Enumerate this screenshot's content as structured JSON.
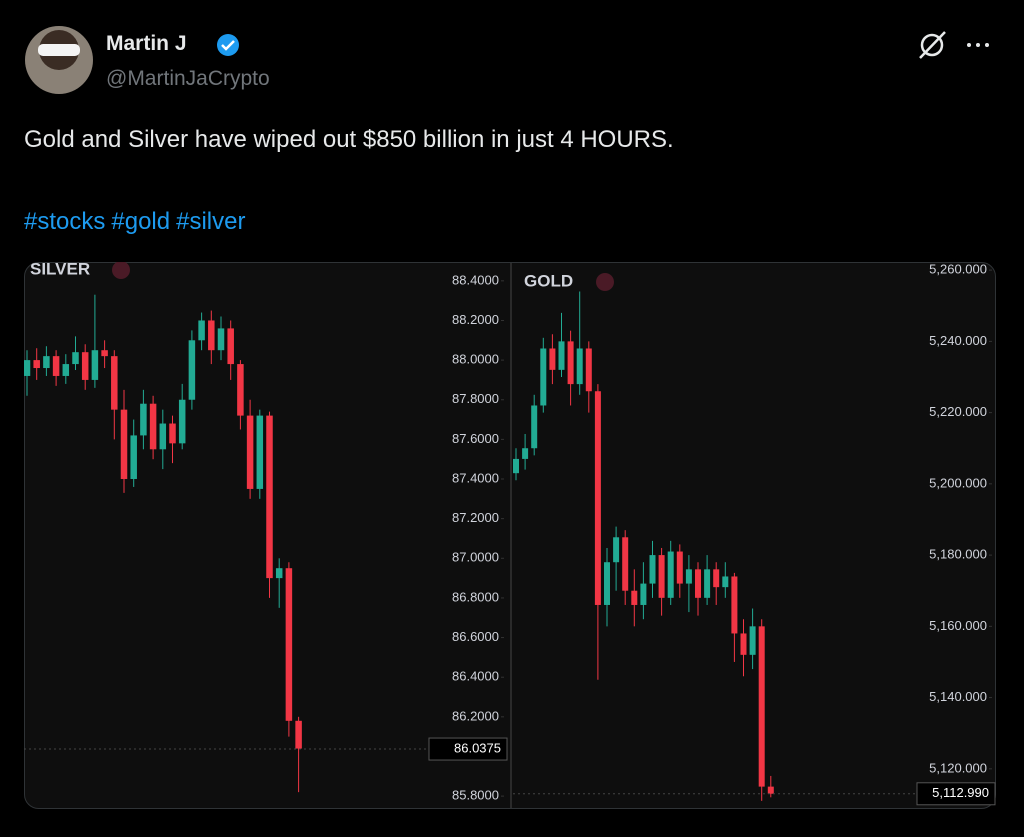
{
  "tweet": {
    "name": "Martin J",
    "handle": "@MartinJaCrypto",
    "text": "Gold and Silver have wiped out $850 billion in just 4 HOURS.",
    "hashtags": [
      "#stocks",
      "#gold",
      "#silver"
    ]
  },
  "chart_data": [
    {
      "type": "candlestick",
      "title": "SILVER",
      "up_color": "#22ab94",
      "down_color": "#f23645",
      "open": [
        87.92,
        88.0,
        87.96,
        88.02,
        87.92,
        87.98,
        88.04,
        87.9,
        88.05,
        88.02,
        87.75,
        87.4,
        87.62,
        87.78,
        87.55,
        87.68,
        87.58,
        87.8,
        88.1,
        88.2,
        88.05,
        88.16,
        87.98,
        87.72,
        87.35,
        87.72,
        86.9,
        86.95,
        86.18
      ],
      "high": [
        88.05,
        88.06,
        88.07,
        88.05,
        88.03,
        88.12,
        88.08,
        88.33,
        88.1,
        88.05,
        87.85,
        87.7,
        87.85,
        87.82,
        87.75,
        87.72,
        87.88,
        88.15,
        88.24,
        88.25,
        88.22,
        88.2,
        88.0,
        87.8,
        87.75,
        87.74,
        87.0,
        86.98,
        86.2
      ],
      "low": [
        87.82,
        87.9,
        87.92,
        87.87,
        87.88,
        87.95,
        87.85,
        87.86,
        87.96,
        87.6,
        87.33,
        87.36,
        87.55,
        87.5,
        87.45,
        87.48,
        87.55,
        87.75,
        88.05,
        87.98,
        88.0,
        87.9,
        87.65,
        87.3,
        87.3,
        86.8,
        86.75,
        86.1,
        85.82
      ],
      "close": [
        88.0,
        87.96,
        88.02,
        87.92,
        87.98,
        88.04,
        87.9,
        88.05,
        88.02,
        87.75,
        87.4,
        87.62,
        87.78,
        87.55,
        87.68,
        87.58,
        87.8,
        88.1,
        88.2,
        88.05,
        88.16,
        87.98,
        87.72,
        87.35,
        87.72,
        86.9,
        86.95,
        86.18,
        86.04
      ],
      "ylim": [
        85.74,
        88.49
      ],
      "yticks": [
        {
          "value": 88.4,
          "label": "88.4000"
        },
        {
          "value": 88.2,
          "label": "88.2000"
        },
        {
          "value": 88.0,
          "label": "88.0000"
        },
        {
          "value": 87.8,
          "label": "87.8000"
        },
        {
          "value": 87.6,
          "label": "87.6000"
        },
        {
          "value": 87.4,
          "label": "87.4000"
        },
        {
          "value": 87.2,
          "label": "87.2000"
        },
        {
          "value": 87.0,
          "label": "87.0000"
        },
        {
          "value": 86.8,
          "label": "86.8000"
        },
        {
          "value": 86.6,
          "label": "86.6000"
        },
        {
          "value": 86.4,
          "label": "86.4000"
        },
        {
          "value": 86.2,
          "label": "86.2000"
        },
        {
          "value": 85.8,
          "label": "85.8000"
        }
      ],
      "last_price": 86.0375
    },
    {
      "type": "candlestick",
      "title": "GOLD",
      "up_color": "#22ab94",
      "down_color": "#f23645",
      "open": [
        5203,
        5207,
        5210,
        5222,
        5238,
        5232,
        5240,
        5228,
        5238,
        5226,
        5166,
        5178,
        5185,
        5170,
        5166,
        5172,
        5180,
        5168,
        5181,
        5172,
        5176,
        5168,
        5176,
        5171,
        5174,
        5158,
        5152,
        5160,
        5115
      ],
      "high": [
        5210,
        5214,
        5225,
        5241,
        5242,
        5248,
        5243,
        5254,
        5240,
        5228,
        5182,
        5188,
        5187,
        5176,
        5178,
        5184,
        5182,
        5184,
        5183,
        5180,
        5178,
        5180,
        5178,
        5178,
        5175,
        5162,
        5165,
        5162,
        5118
      ],
      "low": [
        5201,
        5204,
        5208,
        5220,
        5228,
        5230,
        5222,
        5225,
        5220,
        5145,
        5160,
        5170,
        5166,
        5160,
        5162,
        5168,
        5163,
        5166,
        5168,
        5164,
        5163,
        5166,
        5166,
        5168,
        5150,
        5146,
        5148,
        5111,
        5112
      ],
      "close": [
        5207,
        5210,
        5222,
        5238,
        5232,
        5240,
        5228,
        5238,
        5226,
        5166,
        5178,
        5185,
        5170,
        5166,
        5172,
        5180,
        5168,
        5181,
        5172,
        5176,
        5168,
        5176,
        5171,
        5174,
        5158,
        5152,
        5160,
        5115,
        5113
      ],
      "ylim": [
        5109,
        5262
      ],
      "yticks": [
        {
          "value": 5260,
          "label": "5,260.000"
        },
        {
          "value": 5240,
          "label": "5,240.000"
        },
        {
          "value": 5220,
          "label": "5,220.000"
        },
        {
          "value": 5200,
          "label": "5,200.000"
        },
        {
          "value": 5180,
          "label": "5,180.000"
        },
        {
          "value": 5160,
          "label": "5,160.000"
        },
        {
          "value": 5140,
          "label": "5,140.000"
        },
        {
          "value": 5120,
          "label": "5,120.000"
        }
      ],
      "last_price": {
        "value": 5112.99,
        "label": "5,112.990"
      }
    }
  ]
}
